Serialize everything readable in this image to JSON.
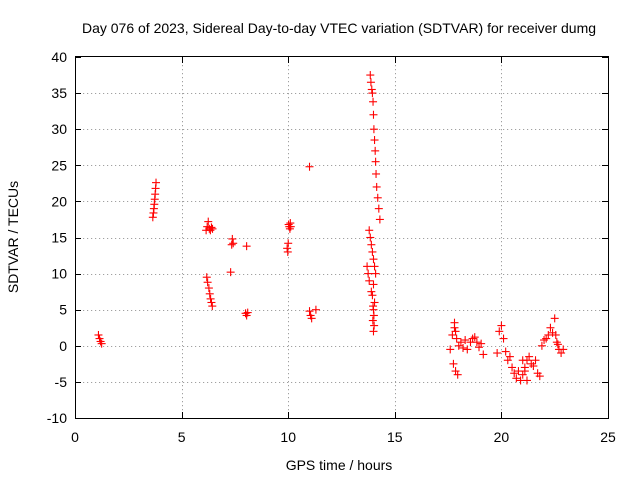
{
  "chart_data": {
    "type": "scatter",
    "title": "Day 076 of 2023, Sidereal Day-to-day VTEC variation (SDTVAR) for receiver dumg",
    "xlabel": "GPS time / hours",
    "ylabel": "SDTVAR / TECUs",
    "xlim": [
      0,
      25
    ],
    "ylim": [
      -10,
      40
    ],
    "xticks": [
      0,
      5,
      10,
      15,
      20,
      25
    ],
    "yticks": [
      -10,
      -5,
      0,
      5,
      10,
      15,
      20,
      25,
      30,
      35,
      40
    ],
    "grid": true,
    "marker": "+",
    "color": "#ff0000",
    "series": [
      {
        "name": "SDTVAR",
        "x": [
          1.1,
          1.15,
          1.2,
          1.25,
          3.65,
          3.68,
          3.7,
          3.72,
          3.74,
          3.76,
          3.78,
          3.8,
          6.15,
          6.2,
          6.25,
          6.3,
          6.35,
          6.4,
          6.45,
          6.18,
          6.22,
          6.28,
          6.32,
          6.36,
          6.4,
          6.44,
          7.3,
          7.35,
          7.38,
          7.42,
          8.05,
          8.0,
          8.05,
          8.1,
          9.95,
          10.0,
          10.05,
          10.1,
          9.98,
          10.02,
          10.08,
          10.12,
          11.0,
          11.05,
          11.1,
          11.0,
          11.3,
          13.7,
          13.75,
          13.8,
          13.85,
          13.88,
          13.92,
          13.95,
          13.98,
          14.0,
          14.02,
          14.05,
          14.08,
          14.1,
          14.12,
          14.15,
          14.2,
          14.25,
          14.3,
          13.8,
          13.85,
          13.9,
          13.95,
          14.0,
          14.05,
          14.1,
          14.0,
          13.9,
          13.95,
          14.05,
          13.98,
          14.0,
          14.02,
          13.97,
          14.03,
          14.0,
          17.6,
          17.7,
          17.8,
          17.9,
          18.0,
          18.1,
          18.2,
          18.3,
          17.75,
          17.85,
          17.95,
          17.8,
          17.85,
          18.4,
          18.55,
          18.65,
          18.75,
          18.85,
          18.95,
          19.05,
          19.15,
          19.8,
          19.9,
          20.0,
          20.1,
          20.2,
          20.3,
          20.4,
          20.5,
          20.6,
          20.7,
          20.8,
          20.9,
          21.0,
          21.1,
          21.2,
          21.3,
          21.4,
          21.5,
          21.6,
          21.7,
          21.8,
          21.9,
          22.0,
          22.1,
          22.2,
          22.3,
          22.4,
          22.5,
          22.6,
          22.7,
          22.8,
          22.9,
          21.0,
          21.1,
          21.2,
          22.55,
          22.65
        ],
        "y": [
          1.5,
          1.0,
          0.6,
          0.3,
          17.8,
          18.4,
          19.0,
          19.6,
          20.3,
          21.0,
          21.8,
          22.6,
          16.0,
          16.5,
          17.2,
          16.2,
          16.0,
          16.4,
          16.2,
          9.5,
          8.8,
          8.0,
          7.2,
          6.5,
          6.0,
          5.5,
          10.2,
          14.0,
          14.8,
          14.2,
          13.8,
          4.5,
          4.2,
          4.6,
          13.5,
          14.2,
          16.5,
          17.0,
          13.0,
          16.8,
          16.2,
          16.5,
          4.8,
          4.2,
          3.8,
          24.8,
          5.0,
          11.0,
          10.0,
          9.0,
          37.5,
          36.5,
          35.5,
          35.0,
          33.8,
          32.0,
          30.0,
          28.5,
          27.0,
          25.5,
          23.8,
          22.0,
          20.5,
          19.0,
          17.5,
          16.0,
          15.0,
          14.0,
          13.0,
          12.0,
          11.0,
          10.0,
          8.5,
          7.5,
          7.0,
          6.0,
          5.5,
          5.0,
          4.2,
          3.5,
          2.8,
          2.0,
          -0.5,
          1.5,
          2.5,
          1.0,
          0.0,
          0.5,
          -0.3,
          0.8,
          -2.5,
          -3.5,
          -4.0,
          3.2,
          2.0,
          -0.5,
          0.5,
          1.0,
          1.2,
          0.5,
          -0.2,
          0.3,
          -1.2,
          -1.0,
          2.0,
          2.8,
          1.0,
          -0.8,
          -2.0,
          -1.5,
          -3.0,
          -3.8,
          -4.5,
          -3.5,
          -4.8,
          -4.0,
          -3.0,
          -2.0,
          -1.5,
          -2.5,
          -2.8,
          -2.0,
          -3.8,
          -4.2,
          0.0,
          0.8,
          1.0,
          1.5,
          2.5,
          1.8,
          3.8,
          0.5,
          -0.5,
          -1.0,
          -0.5,
          -2.0,
          -3.5,
          -4.8,
          1.5,
          0.2
        ]
      }
    ]
  }
}
